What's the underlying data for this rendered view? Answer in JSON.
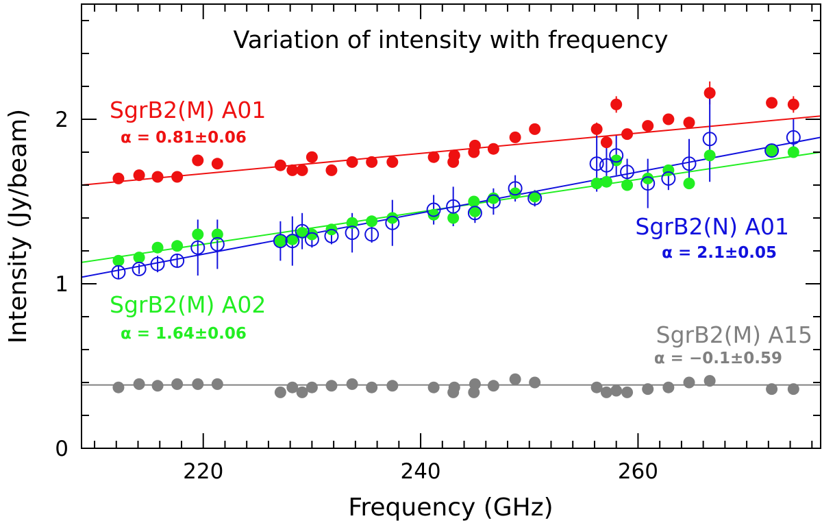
{
  "chart_data": {
    "type": "scatter",
    "title": "Variation of intensity with frequency",
    "xlabel": "Frequency (GHz)",
    "ylabel": "Intensity (Jy/beam)",
    "xlim": [
      208.8,
      276.8
    ],
    "ylim": [
      0,
      2.7
    ],
    "x_major_ticks": [
      220,
      240,
      260
    ],
    "x_major_tick_labels": [
      "220",
      "240",
      "260"
    ],
    "x_minor_step": 2,
    "y_major_ticks": [
      0,
      1,
      2
    ],
    "y_major_tick_labels": [
      "0",
      "1",
      "2"
    ],
    "y_minor_step": 0.2,
    "grid": false,
    "series": [
      {
        "name": "SgrB2(M) A01",
        "alpha_text": "α = 0.81±0.06",
        "color": "#ee1111",
        "marker": "filled-circle",
        "fit": [
          [
            208.8,
            1.6
          ],
          [
            276.8,
            2.02
          ]
        ],
        "points": [
          {
            "x": 212.2,
            "y": 1.64
          },
          {
            "x": 214.1,
            "y": 1.66
          },
          {
            "x": 215.8,
            "y": 1.65
          },
          {
            "x": 217.6,
            "y": 1.65
          },
          {
            "x": 219.5,
            "y": 1.75,
            "err": 0.03
          },
          {
            "x": 221.3,
            "y": 1.73
          },
          {
            "x": 227.1,
            "y": 1.72
          },
          {
            "x": 228.2,
            "y": 1.69
          },
          {
            "x": 229.1,
            "y": 1.69
          },
          {
            "x": 230.0,
            "y": 1.77
          },
          {
            "x": 231.8,
            "y": 1.69
          },
          {
            "x": 233.7,
            "y": 1.74
          },
          {
            "x": 235.5,
            "y": 1.74
          },
          {
            "x": 237.4,
            "y": 1.74
          },
          {
            "x": 241.2,
            "y": 1.77
          },
          {
            "x": 243.0,
            "y": 1.74
          },
          {
            "x": 243.1,
            "y": 1.78
          },
          {
            "x": 244.9,
            "y": 1.8
          },
          {
            "x": 245.0,
            "y": 1.84
          },
          {
            "x": 246.7,
            "y": 1.82
          },
          {
            "x": 248.7,
            "y": 1.89
          },
          {
            "x": 250.5,
            "y": 1.94
          },
          {
            "x": 256.2,
            "y": 1.94,
            "err": 0.04
          },
          {
            "x": 257.1,
            "y": 1.86
          },
          {
            "x": 258.0,
            "y": 2.09,
            "err": 0.05
          },
          {
            "x": 259.0,
            "y": 1.91
          },
          {
            "x": 260.9,
            "y": 1.96
          },
          {
            "x": 262.8,
            "y": 2.0
          },
          {
            "x": 264.7,
            "y": 1.98
          },
          {
            "x": 266.6,
            "y": 2.16,
            "err": 0.07
          },
          {
            "x": 272.3,
            "y": 2.1
          },
          {
            "x": 274.3,
            "y": 2.09,
            "err": 0.05
          }
        ]
      },
      {
        "name": "SgrB2(M) A02",
        "alpha_text": "α = 1.64±0.06",
        "color": "#22ee22",
        "marker": "filled-circle",
        "fit": [
          [
            208.8,
            1.13
          ],
          [
            276.8,
            1.8
          ]
        ],
        "points": [
          {
            "x": 212.2,
            "y": 1.14
          },
          {
            "x": 214.1,
            "y": 1.16
          },
          {
            "x": 215.8,
            "y": 1.22
          },
          {
            "x": 217.6,
            "y": 1.23
          },
          {
            "x": 219.5,
            "y": 1.3
          },
          {
            "x": 221.3,
            "y": 1.3
          },
          {
            "x": 227.1,
            "y": 1.26
          },
          {
            "x": 228.2,
            "y": 1.27
          },
          {
            "x": 229.1,
            "y": 1.31
          },
          {
            "x": 230.0,
            "y": 1.3
          },
          {
            "x": 231.8,
            "y": 1.33
          },
          {
            "x": 233.7,
            "y": 1.37
          },
          {
            "x": 235.5,
            "y": 1.38
          },
          {
            "x": 237.4,
            "y": 1.4
          },
          {
            "x": 241.2,
            "y": 1.42
          },
          {
            "x": 243.0,
            "y": 1.4
          },
          {
            "x": 244.9,
            "y": 1.5
          },
          {
            "x": 245.0,
            "y": 1.44
          },
          {
            "x": 246.7,
            "y": 1.52
          },
          {
            "x": 248.7,
            "y": 1.55
          },
          {
            "x": 250.5,
            "y": 1.53
          },
          {
            "x": 256.2,
            "y": 1.61
          },
          {
            "x": 257.1,
            "y": 1.62
          },
          {
            "x": 258.0,
            "y": 1.75
          },
          {
            "x": 259.0,
            "y": 1.6
          },
          {
            "x": 260.9,
            "y": 1.64
          },
          {
            "x": 262.8,
            "y": 1.69
          },
          {
            "x": 264.7,
            "y": 1.61
          },
          {
            "x": 266.6,
            "y": 1.78
          },
          {
            "x": 272.3,
            "y": 1.81
          },
          {
            "x": 274.3,
            "y": 1.8
          }
        ]
      },
      {
        "name": "SgrB2(N) A01",
        "alpha_text": "α = 2.1±0.05",
        "color": "#1111dd",
        "marker": "open-circle",
        "fit": [
          [
            208.8,
            1.04
          ],
          [
            276.8,
            1.89
          ]
        ],
        "points": [
          {
            "x": 212.2,
            "y": 1.07,
            "err": 0.04
          },
          {
            "x": 214.1,
            "y": 1.09,
            "err": 0.03
          },
          {
            "x": 215.8,
            "y": 1.12,
            "err": 0.05
          },
          {
            "x": 217.6,
            "y": 1.14,
            "err": 0.04
          },
          {
            "x": 219.5,
            "y": 1.22,
            "err": 0.17
          },
          {
            "x": 221.3,
            "y": 1.24,
            "err": 0.15
          },
          {
            "x": 227.1,
            "y": 1.26,
            "err": 0.12
          },
          {
            "x": 228.2,
            "y": 1.26,
            "err": 0.15
          },
          {
            "x": 229.1,
            "y": 1.32,
            "err": 0.11
          },
          {
            "x": 230.0,
            "y": 1.27,
            "err": 0.05
          },
          {
            "x": 231.8,
            "y": 1.29,
            "err": 0.05
          },
          {
            "x": 233.7,
            "y": 1.31,
            "err": 0.12
          },
          {
            "x": 235.5,
            "y": 1.3,
            "err": 0.05
          },
          {
            "x": 237.4,
            "y": 1.37,
            "err": 0.14
          },
          {
            "x": 241.2,
            "y": 1.45,
            "err": 0.09
          },
          {
            "x": 243.0,
            "y": 1.47,
            "err": 0.12
          },
          {
            "x": 245.0,
            "y": 1.43,
            "err": 0.06
          },
          {
            "x": 246.7,
            "y": 1.5,
            "err": 0.08
          },
          {
            "x": 248.7,
            "y": 1.58,
            "err": 0.08
          },
          {
            "x": 250.5,
            "y": 1.52,
            "err": 0.05
          },
          {
            "x": 256.2,
            "y": 1.73,
            "err": 0.17
          },
          {
            "x": 257.1,
            "y": 1.72,
            "err": 0.12
          },
          {
            "x": 258.0,
            "y": 1.78,
            "err": 0.12
          },
          {
            "x": 259.0,
            "y": 1.68,
            "err": 0.08
          },
          {
            "x": 260.9,
            "y": 1.61,
            "err": 0.15
          },
          {
            "x": 262.8,
            "y": 1.64,
            "err": 0.07
          },
          {
            "x": 264.7,
            "y": 1.73,
            "err": 0.15
          },
          {
            "x": 266.6,
            "y": 1.88,
            "err": 0.26
          },
          {
            "x": 272.3,
            "y": 1.81,
            "err": 0.04
          },
          {
            "x": 274.3,
            "y": 1.89,
            "err": 0.11
          }
        ]
      },
      {
        "name": "SgrB2(M) A15",
        "alpha_text": "α = −0.1±0.59",
        "color": "#808080",
        "marker": "filled-circle",
        "fit": [
          [
            208.8,
            0.385
          ],
          [
            276.8,
            0.385
          ]
        ],
        "points": [
          {
            "x": 212.2,
            "y": 0.37
          },
          {
            "x": 214.1,
            "y": 0.39
          },
          {
            "x": 215.8,
            "y": 0.38
          },
          {
            "x": 217.6,
            "y": 0.39
          },
          {
            "x": 219.5,
            "y": 0.39
          },
          {
            "x": 221.3,
            "y": 0.39
          },
          {
            "x": 227.1,
            "y": 0.34
          },
          {
            "x": 228.2,
            "y": 0.37
          },
          {
            "x": 229.1,
            "y": 0.34
          },
          {
            "x": 230.0,
            "y": 0.37
          },
          {
            "x": 231.8,
            "y": 0.38
          },
          {
            "x": 233.7,
            "y": 0.39
          },
          {
            "x": 235.5,
            "y": 0.37
          },
          {
            "x": 237.4,
            "y": 0.38
          },
          {
            "x": 241.2,
            "y": 0.37
          },
          {
            "x": 243.0,
            "y": 0.34
          },
          {
            "x": 243.1,
            "y": 0.37
          },
          {
            "x": 244.9,
            "y": 0.34
          },
          {
            "x": 245.0,
            "y": 0.39
          },
          {
            "x": 246.7,
            "y": 0.38
          },
          {
            "x": 248.7,
            "y": 0.42
          },
          {
            "x": 250.5,
            "y": 0.4
          },
          {
            "x": 256.2,
            "y": 0.37
          },
          {
            "x": 257.1,
            "y": 0.34
          },
          {
            "x": 258.0,
            "y": 0.35
          },
          {
            "x": 259.0,
            "y": 0.34
          },
          {
            "x": 260.9,
            "y": 0.36
          },
          {
            "x": 262.8,
            "y": 0.37
          },
          {
            "x": 264.7,
            "y": 0.4
          },
          {
            "x": 266.6,
            "y": 0.41
          },
          {
            "x": 272.3,
            "y": 0.36
          },
          {
            "x": 274.3,
            "y": 0.36
          }
        ]
      }
    ]
  }
}
